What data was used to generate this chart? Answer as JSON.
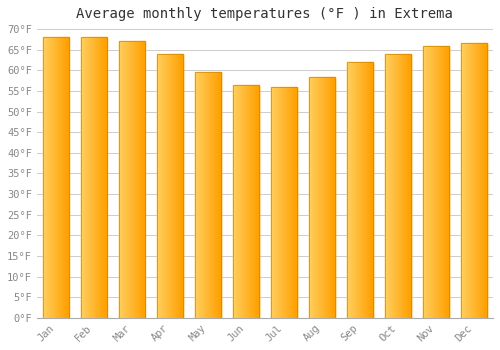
{
  "title": "Average monthly temperatures (°F ) in Extrema",
  "months": [
    "Jan",
    "Feb",
    "Mar",
    "Apr",
    "May",
    "Jun",
    "Jul",
    "Aug",
    "Sep",
    "Oct",
    "Nov",
    "Dec"
  ],
  "values": [
    68.0,
    68.0,
    67.0,
    64.0,
    59.5,
    56.5,
    56.0,
    58.5,
    62.0,
    64.0,
    66.0,
    66.5
  ],
  "bar_color_left": "#FFD060",
  "bar_color_right": "#FFA000",
  "bar_edge_color": "#CC8800",
  "ylim": [
    0,
    70
  ],
  "ytick_step": 5,
  "background_color": "#FFFFFF",
  "grid_color": "#CCCCCC",
  "title_fontsize": 10,
  "tick_fontsize": 7.5,
  "title_color": "#333333",
  "tick_color": "#888888",
  "spine_color": "#AAAAAA",
  "bar_width": 0.7,
  "n_gradient_segments": 40
}
